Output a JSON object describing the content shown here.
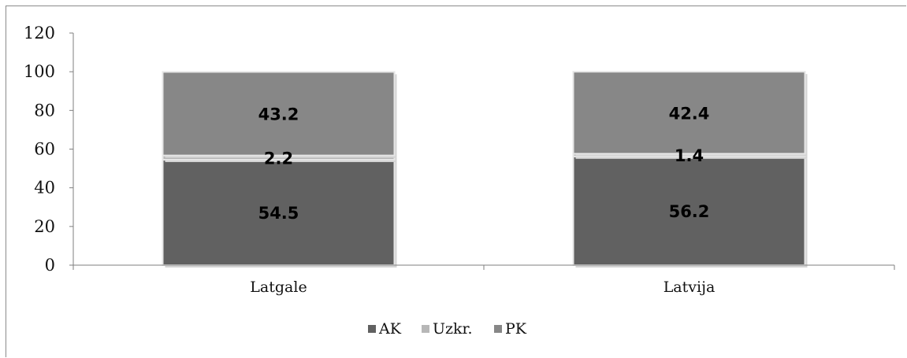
{
  "chart_data": {
    "type": "bar",
    "stacked": true,
    "categories": [
      "Latgale",
      "Latvija"
    ],
    "series": [
      {
        "name": "AK",
        "values": [
          54.5,
          56.2
        ],
        "color": "#616161"
      },
      {
        "name": "Uzkr.",
        "values": [
          2.2,
          1.4
        ],
        "color": "#b7b7b7"
      },
      {
        "name": "PK",
        "values": [
          43.2,
          42.4
        ],
        "color": "#878787"
      }
    ],
    "title": "",
    "xlabel": "",
    "ylabel": "",
    "ylim": [
      0,
      120
    ],
    "yticks": [
      0,
      20,
      40,
      60,
      80,
      100,
      120
    ],
    "grid": false,
    "legend": "bottom"
  }
}
